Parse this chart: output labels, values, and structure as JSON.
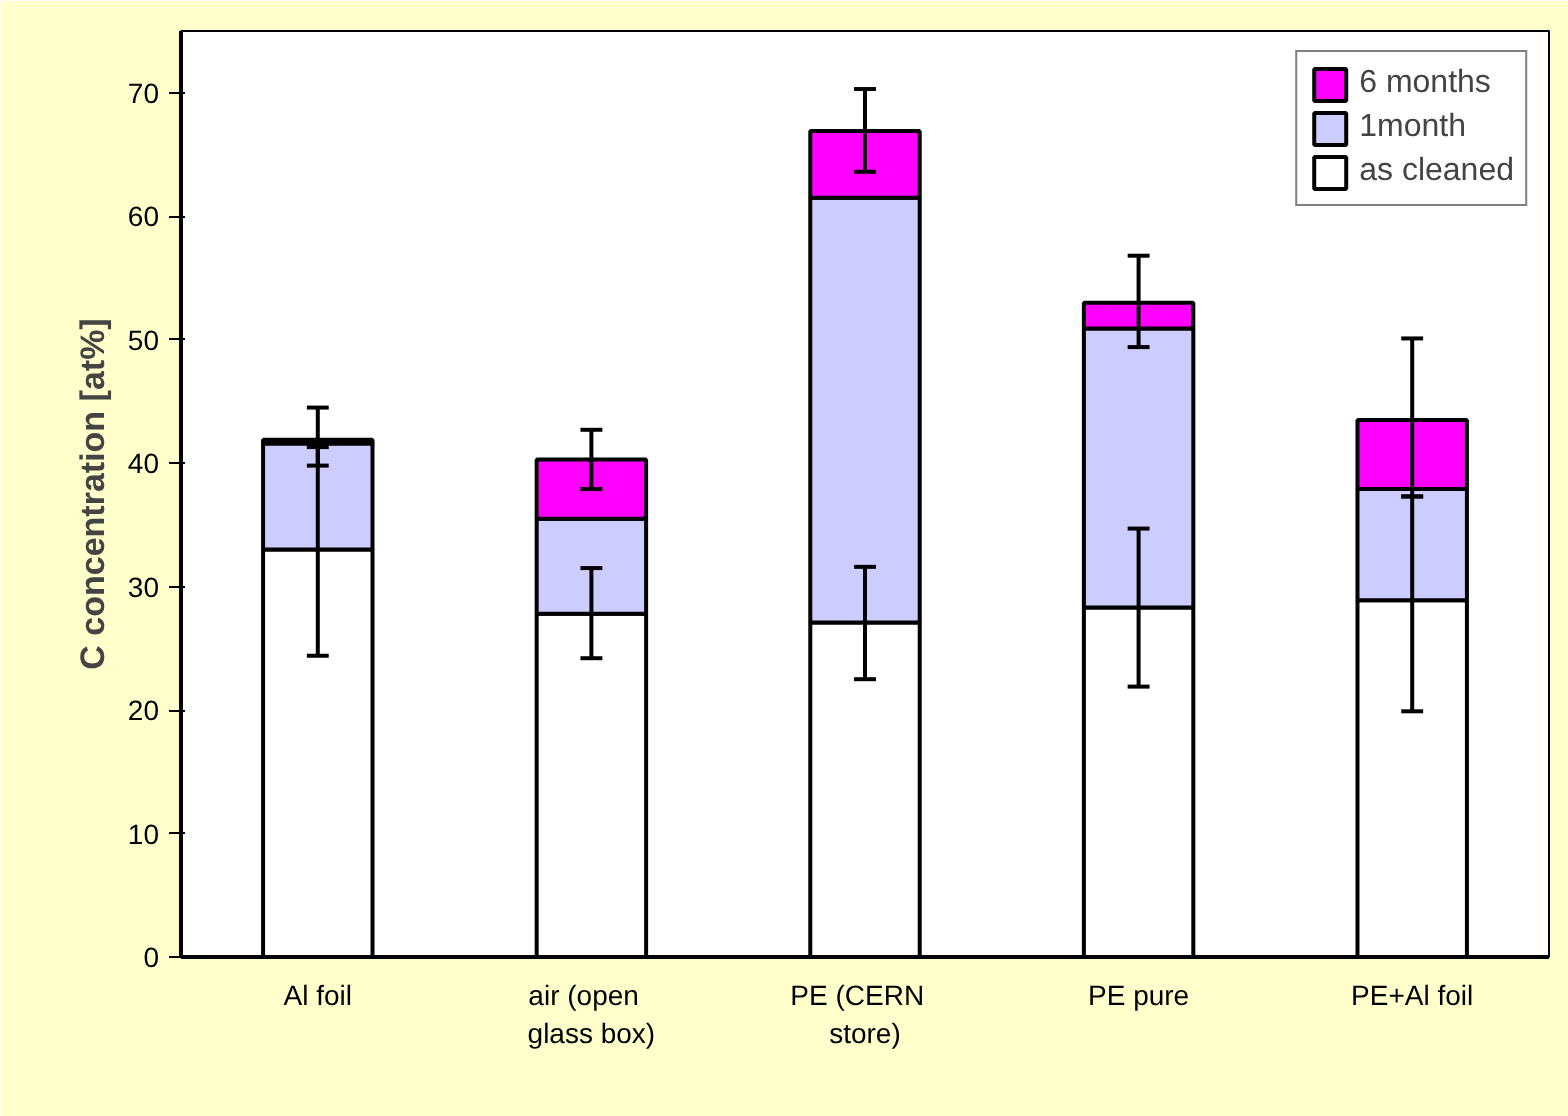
{
  "chart_data": {
    "type": "bar",
    "stacked": true,
    "ylabel": "C concentration [at%]",
    "categories": [
      "Al foil",
      "air   (open\nglass box)",
      "PE   (CERN\nstore)",
      "PE pure",
      "PE+Al foil"
    ],
    "series": [
      {
        "name": "as cleaned",
        "color": "#ffffff",
        "values": [
          33,
          27.8,
          27.1,
          28.3,
          28.9
        ],
        "errors": [
          [
            24.4,
            44.5
          ],
          [
            24.2,
            31.5
          ],
          [
            22.5,
            31.6
          ],
          [
            21.9,
            34.7
          ],
          [
            19.9,
            37.3
          ]
        ]
      },
      {
        "name": "1month",
        "color": "#ccccff",
        "values": [
          8.6,
          7.7,
          34.4,
          22.6,
          9.0
        ],
        "errors": [
          [
            39.8,
            41.3
          ],
          null,
          null,
          null,
          null
        ]
      },
      {
        "name": "6 months",
        "color": "#ff00ff",
        "values": [
          0.3,
          4.8,
          5.4,
          2.1,
          5.6
        ],
        "errors": [
          null,
          [
            37.9,
            42.7
          ],
          [
            63.6,
            70.3
          ],
          [
            49.4,
            56.8
          ],
          [
            37.3,
            50.1
          ]
        ]
      }
    ],
    "ylim": [
      0,
      75
    ],
    "yticks": [
      0,
      10,
      20,
      30,
      40,
      50,
      60,
      70
    ],
    "grid": false,
    "legend": "top right"
  }
}
